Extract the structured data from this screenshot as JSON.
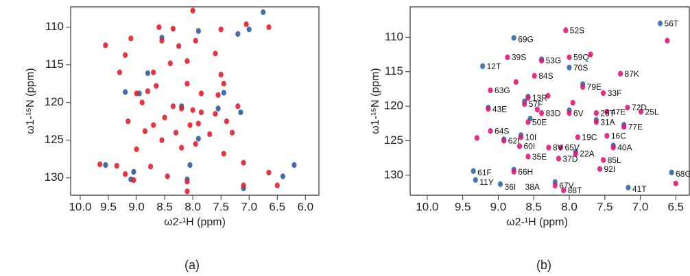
{
  "chart_data": [
    {
      "type": "scatter",
      "caption": "(a)",
      "xlabel": "ω2-¹H (ppm)",
      "ylabel": "ω1-¹⁵N (ppm)",
      "xlim": [
        10.17,
        5.76
      ],
      "ylim": [
        107.3,
        132.3
      ],
      "xticks": [
        {
          "value": 10,
          "label": "10.0"
        },
        9.5,
        {
          "value": 9,
          "label": "9.0"
        },
        8.5,
        {
          "value": 8,
          "label": "8.0"
        },
        7.5,
        {
          "value": 7,
          "label": "7.0"
        },
        6.5,
        {
          "value": 6,
          "label": "6.0"
        }
      ],
      "yticks": [
        110,
        115,
        120,
        125,
        130
      ],
      "series": [
        {
          "color": "#2d5fa0",
          "x": [
            6.75,
            7.9,
            7.2,
            8.55,
            7.0,
            8.8,
            8.95,
            7.45,
            8.2,
            7.55,
            7.15,
            9.2,
            7.9,
            9.05,
            9.55,
            8.05,
            7.1,
            8.1,
            6.4,
            9.1,
            6.2
          ],
          "y": [
            108,
            110.5,
            110.9,
            111.4,
            110.3,
            116.1,
            118.8,
            118.7,
            120.5,
            120.8,
            121.3,
            118.6,
            124.8,
            129.2,
            128.3,
            128.3,
            131.4,
            130.2,
            129.8,
            130.2,
            128.3
          ]
        },
        {
          "color": "#e0202a",
          "x": [
            8.0,
            7.05,
            6.65,
            8.6,
            8.35,
            7.5,
            9.1,
            8.55,
            7.95,
            8.25,
            9.55,
            9.2,
            7.6,
            8.4,
            8.1,
            9.3,
            8.7,
            7.5,
            7.45,
            8.1,
            8.65,
            9.0,
            8.8,
            7.85,
            7.55,
            8.9,
            8.35,
            8.2,
            8.0,
            7.85,
            7.2,
            7.6,
            8.5,
            9.15,
            8.7,
            8.05,
            7.9,
            7.4,
            8.85,
            8.3,
            7.7,
            7.3,
            8.55,
            7.95,
            8.2,
            9.0,
            7.45,
            9.65,
            9.35,
            8.75,
            7.1,
            9.2,
            8.45,
            7.1,
            9.05,
            8.1,
            6.5,
            8.1,
            6.65
          ],
          "y": [
            107.8,
            109.6,
            110,
            110,
            110.2,
            110.3,
            111.5,
            111.8,
            111.8,
            112.5,
            112.4,
            113.7,
            113.5,
            114.8,
            114.5,
            116,
            116,
            116.3,
            117.5,
            117.5,
            117.8,
            118.8,
            118.5,
            118.8,
            119,
            120,
            120.5,
            120.8,
            121,
            121.3,
            120.5,
            121.5,
            122,
            122.5,
            123,
            123,
            122.8,
            122.5,
            123.8,
            124,
            124.2,
            124,
            125,
            125.5,
            126,
            126.2,
            126.8,
            128.2,
            128.4,
            128.5,
            128,
            129.5,
            129.8,
            131,
            130.3,
            130.5,
            131,
            131.8,
            129.3
          ]
        }
      ]
    },
    {
      "type": "scatter",
      "caption": "(b)",
      "xlabel": "ω2-¹H (ppm)",
      "ylabel": "ω1-¹⁵N (ppm)",
      "xlim": [
        10.24,
        6.31
      ],
      "ylim": [
        105.6,
        132.9
      ],
      "xticks": [
        {
          "value": 10,
          "label": "10.0"
        },
        9.5,
        {
          "value": 9,
          "label": "9.0"
        },
        8.5,
        {
          "value": 8,
          "label": "8.0"
        },
        7.5,
        {
          "value": 7,
          "label": "7.0"
        },
        6.5
      ],
      "yticks": [
        110,
        115,
        120,
        125,
        130
      ],
      "series": [
        {
          "color": "#2f6aa8",
          "x": [
            6.72,
            8.78,
            9.22,
            8.39,
            8.0,
            8.58,
            7.81,
            8.63,
            9.14,
            8.0,
            7.62,
            7.23,
            8.68,
            8.92,
            7.91,
            8.78,
            9.35,
            6.56,
            8.97,
            7.17,
            8.2,
            9.32,
            7.38,
            8.55
          ],
          "y": [
            108,
            110.1,
            114.2,
            113.2,
            114.4,
            118.6,
            116.8,
            119.3,
            120.2,
            120.6,
            122.0,
            122.7,
            124.2,
            124.8,
            126.6,
            129.2,
            129.4,
            129.6,
            131.3,
            131.8,
            131.0,
            130.7,
            125.7,
            121.8
          ]
        },
        {
          "color": "#e0187a",
          "x": [
            8.05,
            8.87,
            8.39,
            8.0,
            8.49,
            7.28,
            7.81,
            9.11,
            8.58,
            7.52,
            8.63,
            7.18,
            9.14,
            8.39,
            8.0,
            7.62,
            7.47,
            6.99,
            7.62,
            8.58,
            7.23,
            9.11,
            7.47,
            7.88,
            8.68,
            8.92,
            8.29,
            8.12,
            7.38,
            8.7,
            7.91,
            8.58,
            8.15,
            7.52,
            7.57,
            8.78,
            8.2,
            8.08,
            8.3,
            8.45,
            7.95,
            8.75,
            7.7,
            6.62,
            6.5,
            9.3
          ],
          "y": [
            109,
            112.9,
            113.4,
            112.9,
            115.6,
            115.3,
            117.2,
            117.7,
            118.8,
            118.1,
            119.7,
            120.2,
            120.4,
            121.0,
            121,
            121,
            120.8,
            120.8,
            122.3,
            122.3,
            123.0,
            123.6,
            124.3,
            124.5,
            124.5,
            125.0,
            126,
            126,
            126,
            125.8,
            126.9,
            127.3,
            127.6,
            127.8,
            129.1,
            129.5,
            131.5,
            132.2,
            118.5,
            120.5,
            119.5,
            116.5,
            112.5,
            110.5,
            131.2,
            124.6
          ]
        }
      ],
      "peak_labels": [
        {
          "text": "56T",
          "x": 6.72,
          "y": 108
        },
        {
          "text": "69G",
          "x": 8.78,
          "y": 110.3
        },
        {
          "text": "52S",
          "x": 8.05,
          "y": 109
        },
        {
          "text": "12T",
          "x": 9.22,
          "y": 114.2
        },
        {
          "text": "39S",
          "x": 8.87,
          "y": 112.9
        },
        {
          "text": "53G",
          "x": 8.39,
          "y": 113.4
        },
        {
          "text": "59Q",
          "x": 8.0,
          "y": 112.9
        },
        {
          "text": "70S",
          "x": 8.0,
          "y": 114.4
        },
        {
          "text": "84S",
          "x": 8.49,
          "y": 115.6
        },
        {
          "text": "87K",
          "x": 7.28,
          "y": 115.3
        },
        {
          "text": "79E",
          "x": 7.81,
          "y": 117.2
        },
        {
          "text": "63G",
          "x": 9.11,
          "y": 117.7
        },
        {
          "text": "13R",
          "x": 8.58,
          "y": 118.8
        },
        {
          "text": "33F",
          "x": 7.52,
          "y": 118.1
        },
        {
          "text": "57F",
          "x": 8.63,
          "y": 119.7
        },
        {
          "text": "72D",
          "x": 7.18,
          "y": 120.2
        },
        {
          "text": "43E",
          "x": 9.14,
          "y": 120.4
        },
        {
          "text": "83D",
          "x": 8.39,
          "y": 121.0
        },
        {
          "text": "6V",
          "x": 8.0,
          "y": 121
        },
        {
          "text": "26T",
          "x": 7.62,
          "y": 121
        },
        {
          "text": "47E",
          "x": 7.47,
          "y": 120.8
        },
        {
          "text": "25L",
          "x": 6.99,
          "y": 120.8
        },
        {
          "text": "31A",
          "x": 7.62,
          "y": 122.3
        },
        {
          "text": "50E",
          "x": 8.58,
          "y": 122.3
        },
        {
          "text": "77E",
          "x": 7.23,
          "y": 123.0
        },
        {
          "text": "64S",
          "x": 9.11,
          "y": 123.6
        },
        {
          "text": "16C",
          "x": 7.47,
          "y": 124.3
        },
        {
          "text": "19C",
          "x": 7.88,
          "y": 124.5
        },
        {
          "text": "10I",
          "x": 8.68,
          "y": 124.5
        },
        {
          "text": "62I",
          "x": 8.92,
          "y": 125.0
        },
        {
          "text": "8V",
          "x": 8.29,
          "y": 126
        },
        {
          "text": "65V",
          "x": 8.12,
          "y": 126
        },
        {
          "text": "40A",
          "x": 7.38,
          "y": 126
        },
        {
          "text": "60I",
          "x": 8.7,
          "y": 125.8
        },
        {
          "text": "22A",
          "x": 7.91,
          "y": 126.9
        },
        {
          "text": "35E",
          "x": 8.58,
          "y": 127.3
        },
        {
          "text": "37D",
          "x": 8.15,
          "y": 127.6
        },
        {
          "text": "85L",
          "x": 7.52,
          "y": 127.8
        },
        {
          "text": "92I",
          "x": 7.57,
          "y": 129.1
        },
        {
          "text": "66H",
          "x": 8.78,
          "y": 129.5
        },
        {
          "text": "61F",
          "x": 9.35,
          "y": 129.6
        },
        {
          "text": "68G",
          "x": 6.56,
          "y": 129.8
        },
        {
          "text": "67V",
          "x": 8.2,
          "y": 131.5
        },
        {
          "text": "11Y",
          "x": 9.32,
          "y": 131
        },
        {
          "text": "36I",
          "x": 8.97,
          "y": 131.7
        },
        {
          "text": "38A",
          "x": 8.68,
          "y": 131.7
        },
        {
          "text": "41T",
          "x": 7.17,
          "y": 132.0
        },
        {
          "text": "88T",
          "x": 8.08,
          "y": 132.2
        }
      ]
    }
  ]
}
